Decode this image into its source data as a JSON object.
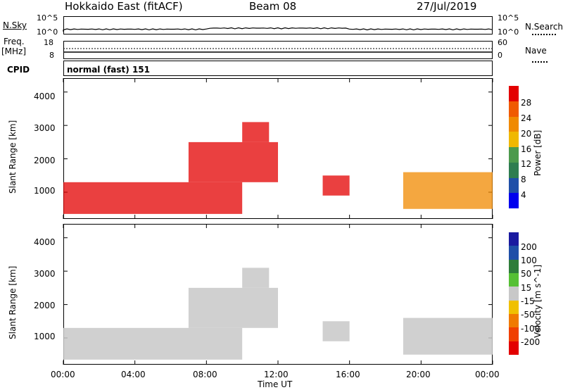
{
  "header": {
    "radar": "Hokkaido East (fitACF)",
    "beam": "Beam 08",
    "date": "27/Jul/2019"
  },
  "nsky": {
    "label": "N.Sky",
    "left_ticks": [
      "10^5",
      "10^0"
    ],
    "right_ticks": [
      "10^5",
      "10^0"
    ],
    "right_label": "N.Search"
  },
  "freq": {
    "label_top": "Freq.",
    "label_bottom": "[MHz]",
    "left_ticks": [
      "18",
      "8"
    ],
    "right_ticks": [
      "60",
      "0"
    ],
    "right_label": "Nave"
  },
  "cpid": {
    "label": "CPID",
    "text": "normal (fast) 151"
  },
  "colors": {
    "power_scale": [
      "#0000ee",
      "#1f4fa8",
      "#2e7d50",
      "#4c9a4c",
      "#f0b800",
      "#f08a00",
      "#f05a00",
      "#e30000"
    ],
    "velocity_scale": [
      "#e30000",
      "#f04000",
      "#f07a00",
      "#f0c000",
      "#c8c8c8",
      "#55c034",
      "#2e7d3a",
      "#1f4fa8",
      "#1a1aa0"
    ]
  },
  "chart_data": [
    {
      "type": "heatmap",
      "title": "",
      "xlabel": "Time UT",
      "ylabel": "Slant Range [km]",
      "x_ticks": [
        "00:00",
        "04:00",
        "08:00",
        "12:00",
        "16:00",
        "20:00",
        "00:00"
      ],
      "y_ticks": [
        "1000",
        "2000",
        "3000",
        "4000"
      ],
      "colorbar": {
        "label": "Power [dB]",
        "ticks": [
          "4",
          "8",
          "12",
          "16",
          "20",
          "24",
          "28"
        ]
      },
      "echo_regions": [
        {
          "t_start": 0,
          "t_end": 10,
          "r_low": 350,
          "r_high": 1300,
          "level": "high"
        },
        {
          "t_start": 7,
          "t_end": 12,
          "r_low": 1300,
          "r_high": 2500,
          "level": "high"
        },
        {
          "t_start": 10,
          "t_end": 11.5,
          "r_low": 2500,
          "r_high": 3100,
          "level": "high"
        },
        {
          "t_start": 14.5,
          "t_end": 16,
          "r_low": 900,
          "r_high": 1500,
          "level": "high"
        },
        {
          "t_start": 19,
          "t_end": 24,
          "r_low": 500,
          "r_high": 1600,
          "level": "medium"
        }
      ]
    },
    {
      "type": "heatmap",
      "title": "",
      "xlabel": "Time UT",
      "ylabel": "Slant Range [km]",
      "x_ticks": [
        "00:00",
        "04:00",
        "08:00",
        "12:00",
        "16:00",
        "20:00",
        "00:00"
      ],
      "y_ticks": [
        "1000",
        "2000",
        "3000",
        "4000"
      ],
      "colorbar": {
        "label": "Velocity [m s^-1]",
        "ticks": [
          "200",
          "100",
          "50",
          "15",
          "-15",
          "-50",
          "-100",
          "-200"
        ]
      }
    }
  ]
}
